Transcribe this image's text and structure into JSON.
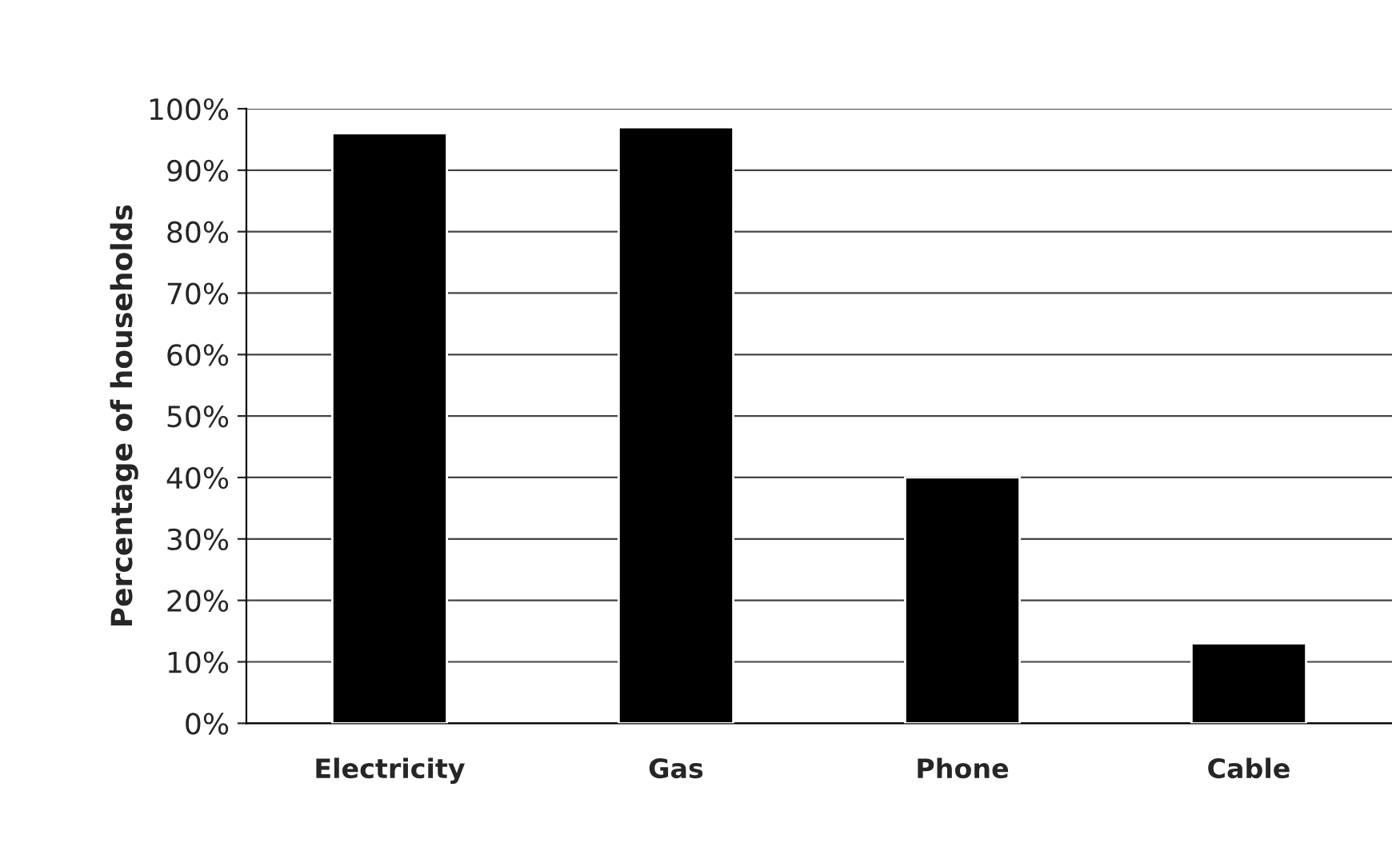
{
  "chart_data": {
    "type": "bar",
    "ylabel": "Percentage of households",
    "categories": [
      "Electricity",
      "Gas",
      "Phone",
      "Cable"
    ],
    "series": [
      {
        "color": "#000000",
        "values": [
          96,
          97,
          40,
          13
        ]
      }
    ],
    "ylim": [
      0,
      100
    ],
    "yticks": [
      {
        "value": 0,
        "label": "0%"
      },
      {
        "value": 10,
        "label": "10%"
      },
      {
        "value": 20,
        "label": "20%"
      },
      {
        "value": 30,
        "label": "30%"
      },
      {
        "value": 40,
        "label": "40%"
      },
      {
        "value": 50,
        "label": "50%"
      },
      {
        "value": 60,
        "label": "60%"
      },
      {
        "value": 70,
        "label": "70%"
      },
      {
        "value": 80,
        "label": "80%"
      },
      {
        "value": 90,
        "label": "90%"
      },
      {
        "value": 100,
        "label": "100%"
      }
    ],
    "grid": "y",
    "legend": false
  }
}
